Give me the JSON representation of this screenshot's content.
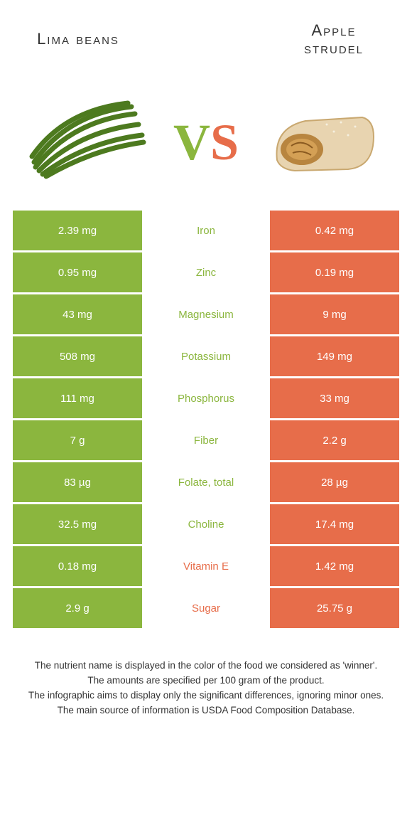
{
  "colors": {
    "green": "#8bb63e",
    "orange": "#e76d4a",
    "text": "#333333",
    "bg": "#ffffff"
  },
  "left": {
    "title": "Lima beans"
  },
  "right": {
    "title_line1": "Apple",
    "title_line2": "strudel"
  },
  "vs": {
    "v": "V",
    "s": "S"
  },
  "rows": [
    {
      "left": "2.39 mg",
      "label": "Iron",
      "right": "0.42 mg",
      "winner": "left"
    },
    {
      "left": "0.95 mg",
      "label": "Zinc",
      "right": "0.19 mg",
      "winner": "left"
    },
    {
      "left": "43 mg",
      "label": "Magnesium",
      "right": "9 mg",
      "winner": "left"
    },
    {
      "left": "508 mg",
      "label": "Potassium",
      "right": "149 mg",
      "winner": "left"
    },
    {
      "left": "111 mg",
      "label": "Phosphorus",
      "right": "33 mg",
      "winner": "left"
    },
    {
      "left": "7 g",
      "label": "Fiber",
      "right": "2.2 g",
      "winner": "left"
    },
    {
      "left": "83 µg",
      "label": "Folate, total",
      "right": "28 µg",
      "winner": "left"
    },
    {
      "left": "32.5 mg",
      "label": "Choline",
      "right": "17.4 mg",
      "winner": "left"
    },
    {
      "left": "0.18 mg",
      "label": "Vitamin E",
      "right": "1.42 mg",
      "winner": "right"
    },
    {
      "left": "2.9 g",
      "label": "Sugar",
      "right": "25.75 g",
      "winner": "right"
    }
  ],
  "footer": {
    "l1": "The nutrient name is displayed in the color of the food we considered as 'winner'.",
    "l2": "The amounts are specified per 100 gram of the product.",
    "l3": "The infographic aims to display only the significant differences, ignoring minor ones.",
    "l4": "The main source of information is USDA Food Composition Database."
  }
}
